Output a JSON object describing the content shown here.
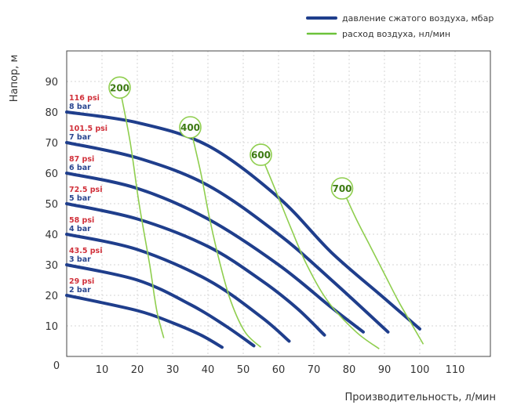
{
  "chart_data": {
    "type": "line",
    "xlabel": "Производительность, л/мин",
    "ylabel": "Напор, м",
    "origin_label": "0",
    "xlim": [
      0,
      120
    ],
    "ylim": [
      0,
      100
    ],
    "x_ticks": [
      10,
      20,
      30,
      40,
      50,
      60,
      70,
      80,
      90,
      100,
      110
    ],
    "y_ticks": [
      10,
      20,
      30,
      40,
      50,
      60,
      70,
      80,
      90
    ],
    "grid": true,
    "legend": {
      "position": "top-right",
      "entries": [
        {
          "label": "давление сжатого воздуха, мбар",
          "color": "#1f3e8c"
        },
        {
          "label": "расход воздуха, нл/мин",
          "color": "#6cc23a"
        }
      ]
    },
    "pressure_series": [
      {
        "psi": "116 psi",
        "bar": "8 bar",
        "points": [
          [
            0,
            80
          ],
          [
            20,
            76.5
          ],
          [
            40,
            69
          ],
          [
            60,
            52
          ],
          [
            75,
            34
          ],
          [
            90,
            19
          ],
          [
            100,
            9
          ]
        ]
      },
      {
        "psi": "101.5 psi",
        "bar": "7 bar",
        "points": [
          [
            0,
            70
          ],
          [
            20,
            65
          ],
          [
            40,
            56
          ],
          [
            60,
            40
          ],
          [
            75,
            25
          ],
          [
            91,
            8
          ]
        ]
      },
      {
        "psi": "87 psi",
        "bar": "6 bar",
        "points": [
          [
            0,
            60
          ],
          [
            20,
            55
          ],
          [
            40,
            45
          ],
          [
            60,
            30
          ],
          [
            75,
            16
          ],
          [
            84,
            8
          ]
        ]
      },
      {
        "psi": "72.5 psi",
        "bar": "5 bar",
        "points": [
          [
            0,
            50
          ],
          [
            20,
            45
          ],
          [
            40,
            36
          ],
          [
            55,
            25
          ],
          [
            65,
            16
          ],
          [
            73,
            7
          ]
        ]
      },
      {
        "psi": "58 psi",
        "bar": "4 bar",
        "points": [
          [
            0,
            40
          ],
          [
            20,
            35
          ],
          [
            40,
            25
          ],
          [
            55,
            13
          ],
          [
            63,
            5
          ]
        ]
      },
      {
        "psi": "43.5 psi",
        "bar": "3 bar",
        "points": [
          [
            0,
            30
          ],
          [
            20,
            25
          ],
          [
            35,
            17
          ],
          [
            45,
            10
          ],
          [
            53,
            3.5
          ]
        ]
      },
      {
        "psi": "29 psi",
        "bar": "2 bar",
        "points": [
          [
            0,
            20
          ],
          [
            20,
            15
          ],
          [
            30,
            11
          ],
          [
            38,
            7
          ],
          [
            44,
            3
          ]
        ]
      }
    ],
    "airflow_series": [
      {
        "label": "200",
        "points": [
          [
            15,
            88
          ],
          [
            18,
            70
          ],
          [
            20.5,
            50
          ],
          [
            23.5,
            30
          ],
          [
            25.5,
            15
          ],
          [
            27.5,
            6
          ]
        ]
      },
      {
        "label": "400",
        "points": [
          [
            35,
            75
          ],
          [
            38,
            60
          ],
          [
            40.5,
            45
          ],
          [
            43.5,
            30
          ],
          [
            46.5,
            18
          ],
          [
            50.5,
            8
          ],
          [
            55,
            3
          ]
        ]
      },
      {
        "label": "600",
        "points": [
          [
            55,
            66
          ],
          [
            60,
            52
          ],
          [
            63.5,
            42
          ],
          [
            68,
            30
          ],
          [
            74,
            18
          ],
          [
            82,
            8
          ],
          [
            88.5,
            2.5
          ]
        ]
      },
      {
        "label": "700",
        "points": [
          [
            78,
            55
          ],
          [
            82,
            45
          ],
          [
            86,
            36
          ],
          [
            90,
            27
          ],
          [
            94,
            18
          ],
          [
            98,
            10
          ],
          [
            101,
            4
          ]
        ]
      }
    ]
  }
}
